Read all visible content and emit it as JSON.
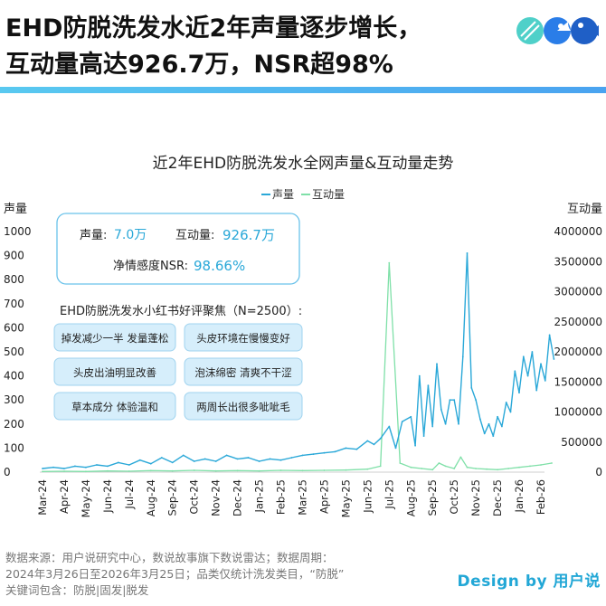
{
  "headline": {
    "line1": "EHD防脱洗发水近2年声量逐步增长，",
    "line2": "互动量高达926.7万，NSR超98%"
  },
  "chart_data": {
    "type": "line",
    "title": "近2年EHD防脱洗发水全网声量&互动量走势",
    "ylabel_left": "声量",
    "ylabel_right": "互动量",
    "xlabel": "",
    "y_left_ticks": [
      "0",
      "100",
      "200",
      "300",
      "400",
      "500",
      "600",
      "700",
      "800",
      "900",
      "1000"
    ],
    "y_right_ticks": [
      "0",
      "500000",
      "1000000",
      "1500000",
      "2000000",
      "2500000",
      "3000000",
      "3500000",
      "4000000"
    ],
    "ylim_left": [
      0,
      1000
    ],
    "ylim_right": [
      0,
      4000000
    ],
    "x_tick_labels": [
      "Mar-24",
      "Apr-24",
      "May-24",
      "Jun-24",
      "Jul-24",
      "Aug-24",
      "Sep-24",
      "Oct-24",
      "Nov-24",
      "Dec-24",
      "Jan-25",
      "Feb-25",
      "Mar-25",
      "Apr-25",
      "May-25",
      "Jun-25",
      "Jul-25",
      "Aug-25",
      "Sep-25",
      "Oct-25",
      "Nov-25",
      "Dec-25",
      "Jan-26",
      "Feb-26"
    ],
    "legend_position": "top-center",
    "grid": false,
    "series": [
      {
        "name": "声量",
        "axis": "left",
        "color": "#2aa8d8",
        "x": [
          0,
          0.5,
          1,
          1.5,
          2,
          2.5,
          3,
          3.5,
          4,
          4.5,
          5,
          5.5,
          6,
          6.5,
          7,
          7.5,
          8,
          8.5,
          9,
          9.5,
          10,
          10.5,
          11,
          11.5,
          12,
          12.5,
          13,
          13.5,
          14,
          14.5,
          15,
          15.3,
          15.6,
          16,
          16.3,
          16.6,
          17,
          17.2,
          17.4,
          17.6,
          17.8,
          18,
          18.2,
          18.4,
          18.6,
          18.8,
          19,
          19.2,
          19.4,
          19.6,
          19.8,
          20,
          20.2,
          20.4,
          20.6,
          20.8,
          21,
          21.2,
          21.4,
          21.6,
          21.8,
          22,
          22.2,
          22.4,
          22.6,
          22.8,
          23,
          23.2,
          23.4,
          23.6
        ],
        "values": [
          15,
          20,
          15,
          25,
          20,
          30,
          25,
          40,
          30,
          50,
          35,
          60,
          40,
          70,
          45,
          55,
          45,
          70,
          55,
          60,
          45,
          55,
          50,
          60,
          70,
          75,
          80,
          85,
          100,
          95,
          130,
          115,
          140,
          190,
          100,
          210,
          230,
          110,
          400,
          150,
          360,
          190,
          450,
          260,
          200,
          300,
          300,
          200,
          480,
          910,
          350,
          300,
          220,
          160,
          200,
          150,
          230,
          190,
          290,
          250,
          420,
          330,
          480,
          400,
          500,
          340,
          450,
          380,
          570,
          470
        ]
      },
      {
        "name": "互动量",
        "axis": "right",
        "color": "#7fe0a8",
        "x": [
          0,
          1,
          2,
          3,
          4,
          5,
          6,
          7,
          8,
          9,
          10,
          11,
          12,
          13,
          14,
          15,
          15.6,
          16,
          16.5,
          17,
          17.5,
          18,
          18.3,
          18.6,
          19,
          19.3,
          19.6,
          20,
          20.5,
          21,
          21.5,
          22,
          22.5,
          23,
          23.5
        ],
        "values": [
          10000,
          15000,
          10000,
          20000,
          15000,
          25000,
          20000,
          30000,
          20000,
          25000,
          20000,
          30000,
          25000,
          30000,
          35000,
          50000,
          100000,
          3480000,
          150000,
          80000,
          60000,
          40000,
          150000,
          100000,
          60000,
          250000,
          80000,
          60000,
          50000,
          40000,
          60000,
          80000,
          100000,
          120000,
          150000
        ]
      }
    ]
  },
  "kpi_box": {
    "voice_label": "声量:",
    "voice_value": "7.0万",
    "interaction_label": "互动量:",
    "interaction_value": "926.7万",
    "nsr_label": "净情感度NSR:",
    "nsr_value": "98.66%"
  },
  "review_panel": {
    "title": "EHD防脱洗发水小红书好评聚焦（N=2500）:",
    "tags": [
      "掉发减少一半 发量蓬松",
      "头皮环境在慢慢变好",
      "头皮出油明显改善",
      "泡沫绵密 清爽不干涩",
      "草本成分 体验温和",
      "两周长出很多呲呲毛"
    ]
  },
  "colors": {
    "accent": "#2aa8d8",
    "secondary": "#7fe0a8",
    "panel_border": "#69c2ea",
    "tag_fill": "#d6eefb",
    "kpi_number": "#2aa8d8"
  },
  "footer": {
    "line1": "数据来源：用户说研究中心，数说故事旗下数说雷达；数据周期：",
    "line2": "2024年3月26日至2026年3月25日；品类仅统计洗发类目，“防脱”",
    "line3": "关键词包含：防脱|固发|脱发",
    "brand": "Design by 用户说"
  }
}
